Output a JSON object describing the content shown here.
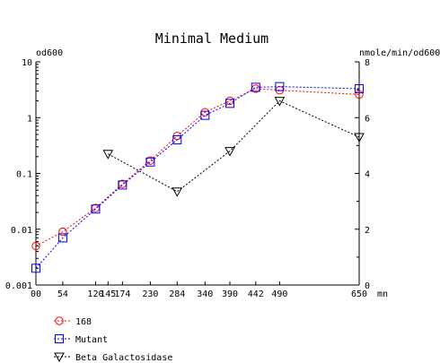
{
  "chart_data": {
    "type": "line",
    "title": "Minimal Medium",
    "xlabel": "",
    "x_unit": "mn",
    "y_left_label": "od600",
    "y_right_label": "nmole/min/od600",
    "x_ticks": [
      0,
      54,
      120,
      145,
      174,
      230,
      284,
      340,
      390,
      442,
      490,
      650
    ],
    "x_tick_labels": [
      "00",
      "54",
      "120",
      "145",
      "174",
      "230",
      "284",
      "340",
      "390",
      "442",
      "490",
      "650"
    ],
    "xlim": [
      0,
      650
    ],
    "y_left_scale": "log",
    "y_left_ticks": [
      0.001,
      0.01,
      0.1,
      1,
      10
    ],
    "y_left_tick_labels": [
      "0.001",
      "0.01",
      "0.1",
      "1",
      "10"
    ],
    "y_left_lim": [
      0.001,
      10
    ],
    "y_right_scale": "linear",
    "y_right_ticks": [
      0,
      2,
      4,
      6,
      8
    ],
    "y_right_tick_labels": [
      "0",
      "2",
      "4",
      "6",
      "8"
    ],
    "y_right_lim": [
      0,
      8
    ],
    "grid": false,
    "legend_position": "bottom-left",
    "series": [
      {
        "name": "168",
        "axis": "left",
        "color": "#ff0000",
        "marker": "circle",
        "line": "dashed",
        "x": [
          0,
          54,
          120,
          174,
          230,
          284,
          340,
          390,
          442,
          490,
          650
        ],
        "y": [
          0.005,
          0.009,
          0.024,
          0.065,
          0.17,
          0.47,
          1.25,
          2.0,
          3.3,
          3.1,
          2.6
        ]
      },
      {
        "name": "Mutant",
        "axis": "left",
        "color": "#0000ff",
        "marker": "square",
        "line": "dashed",
        "x": [
          0,
          54,
          120,
          174,
          230,
          284,
          340,
          390,
          442,
          490,
          650
        ],
        "y": [
          0.002,
          0.007,
          0.023,
          0.062,
          0.16,
          0.4,
          1.1,
          1.8,
          3.5,
          3.6,
          3.3
        ]
      },
      {
        "name": "Beta Galactosidase",
        "axis": "right",
        "color": "#000000",
        "marker": "triangle-down",
        "line": "dashed",
        "x": [
          145,
          284,
          390,
          490,
          650
        ],
        "y": [
          4.7,
          3.35,
          4.8,
          6.6,
          5.3
        ]
      }
    ]
  }
}
